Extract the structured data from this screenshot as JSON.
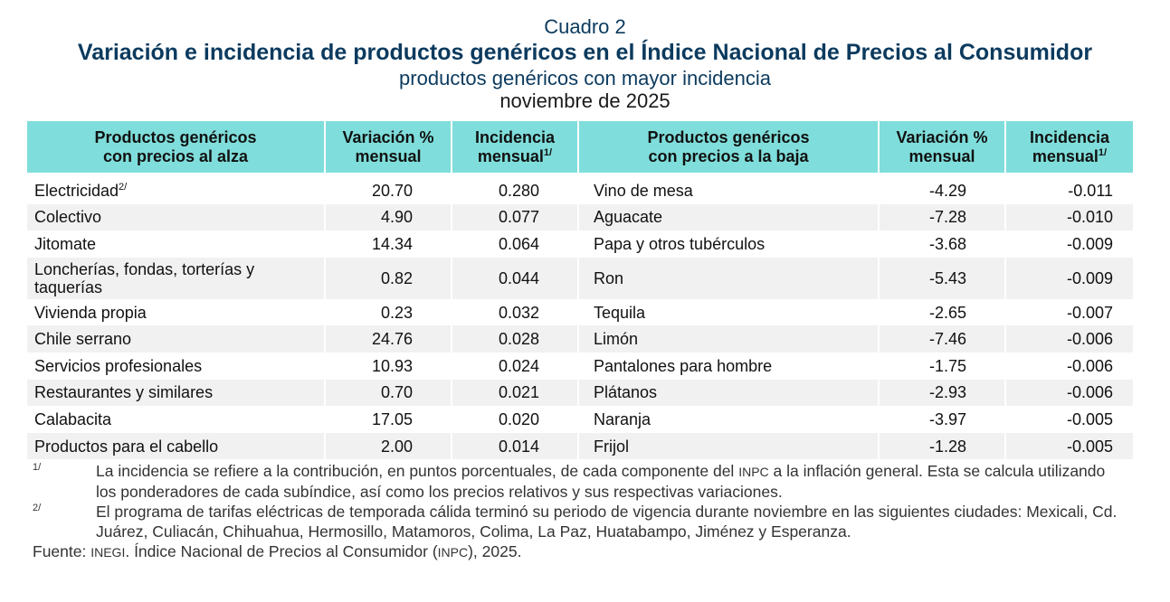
{
  "header": {
    "label": "Cuadro 2",
    "title": "Variación e incidencia de productos genéricos en el Índice Nacional de Precios al Consumidor",
    "subtitle": "productos genéricos con mayor incidencia",
    "period": "noviembre de 2025"
  },
  "columns": {
    "up_products_line1": "Productos genéricos",
    "up_products_line2": "con precios al alza",
    "variation_line1": "Variación %",
    "variation_line2": "mensual",
    "incidence_line1": "Incidencia",
    "incidence_line2": "mensual",
    "incidence_note": "1/",
    "down_products_line1": "Productos genéricos",
    "down_products_line2": "con precios a la baja"
  },
  "rows": [
    {
      "up_name": "Electricidad",
      "up_note": "2/",
      "up_var": "20.70",
      "up_inc": "0.280",
      "down_name": "Vino de mesa",
      "down_var": "-4.29",
      "down_inc": "-0.011"
    },
    {
      "up_name": "Colectivo",
      "up_note": "",
      "up_var": "4.90",
      "up_inc": "0.077",
      "down_name": "Aguacate",
      "down_var": "-7.28",
      "down_inc": "-0.010"
    },
    {
      "up_name": "Jitomate",
      "up_note": "",
      "up_var": "14.34",
      "up_inc": "0.064",
      "down_name": "Papa y otros tubérculos",
      "down_var": "-3.68",
      "down_inc": "-0.009"
    },
    {
      "up_name": "Loncherías, fondas, torterías y taquerías",
      "up_note": "",
      "up_var": "0.82",
      "up_inc": "0.044",
      "down_name": "Ron",
      "down_var": "-5.43",
      "down_inc": "-0.009"
    },
    {
      "up_name": "Vivienda propia",
      "up_note": "",
      "up_var": "0.23",
      "up_inc": "0.032",
      "down_name": "Tequila",
      "down_var": "-2.65",
      "down_inc": "-0.007"
    },
    {
      "up_name": "Chile serrano",
      "up_note": "",
      "up_var": "24.76",
      "up_inc": "0.028",
      "down_name": "Limón",
      "down_var": "-7.46",
      "down_inc": "-0.006"
    },
    {
      "up_name": "Servicios profesionales",
      "up_note": "",
      "up_var": "10.93",
      "up_inc": "0.024",
      "down_name": "Pantalones para hombre",
      "down_var": "-1.75",
      "down_inc": "-0.006"
    },
    {
      "up_name": "Restaurantes y similares",
      "up_note": "",
      "up_var": "0.70",
      "up_inc": "0.021",
      "down_name": "Plátanos",
      "down_var": "-2.93",
      "down_inc": "-0.006"
    },
    {
      "up_name": "Calabacita",
      "up_note": "",
      "up_var": "17.05",
      "up_inc": "0.020",
      "down_name": "Naranja",
      "down_var": "-3.97",
      "down_inc": "-0.005"
    },
    {
      "up_name": "Productos para el cabello",
      "up_note": "",
      "up_var": "2.00",
      "up_inc": "0.014",
      "down_name": "Frijol",
      "down_var": "-1.28",
      "down_inc": "-0.005"
    }
  ],
  "notes": [
    {
      "mark": "1/",
      "text_a": "La incidencia se refiere a la contribución, en puntos porcentuales, de cada componente del ",
      "abbr": "INPC",
      "text_b": " a la inflación general. Esta se calcula utilizando los ponderadores de cada subíndice, así como los precios relativos y sus respectivas variaciones."
    },
    {
      "mark": "2/",
      "text": "El programa de tarifas eléctricas de temporada cálida terminó su periodo de vigencia durante noviembre en las siguientes ciudades: Mexicali, Cd. Juárez, Culiacán, Chihuahua, Hermosillo, Matamoros, Colima, La Paz, Huatabampo, Jiménez y Esperanza."
    }
  ],
  "source": {
    "prefix": "Fuente: ",
    "org": "INEGI",
    "middle": ". Índice Nacional de Precios al Consumidor (",
    "abbr": "INPC",
    "suffix": "), 2025."
  }
}
